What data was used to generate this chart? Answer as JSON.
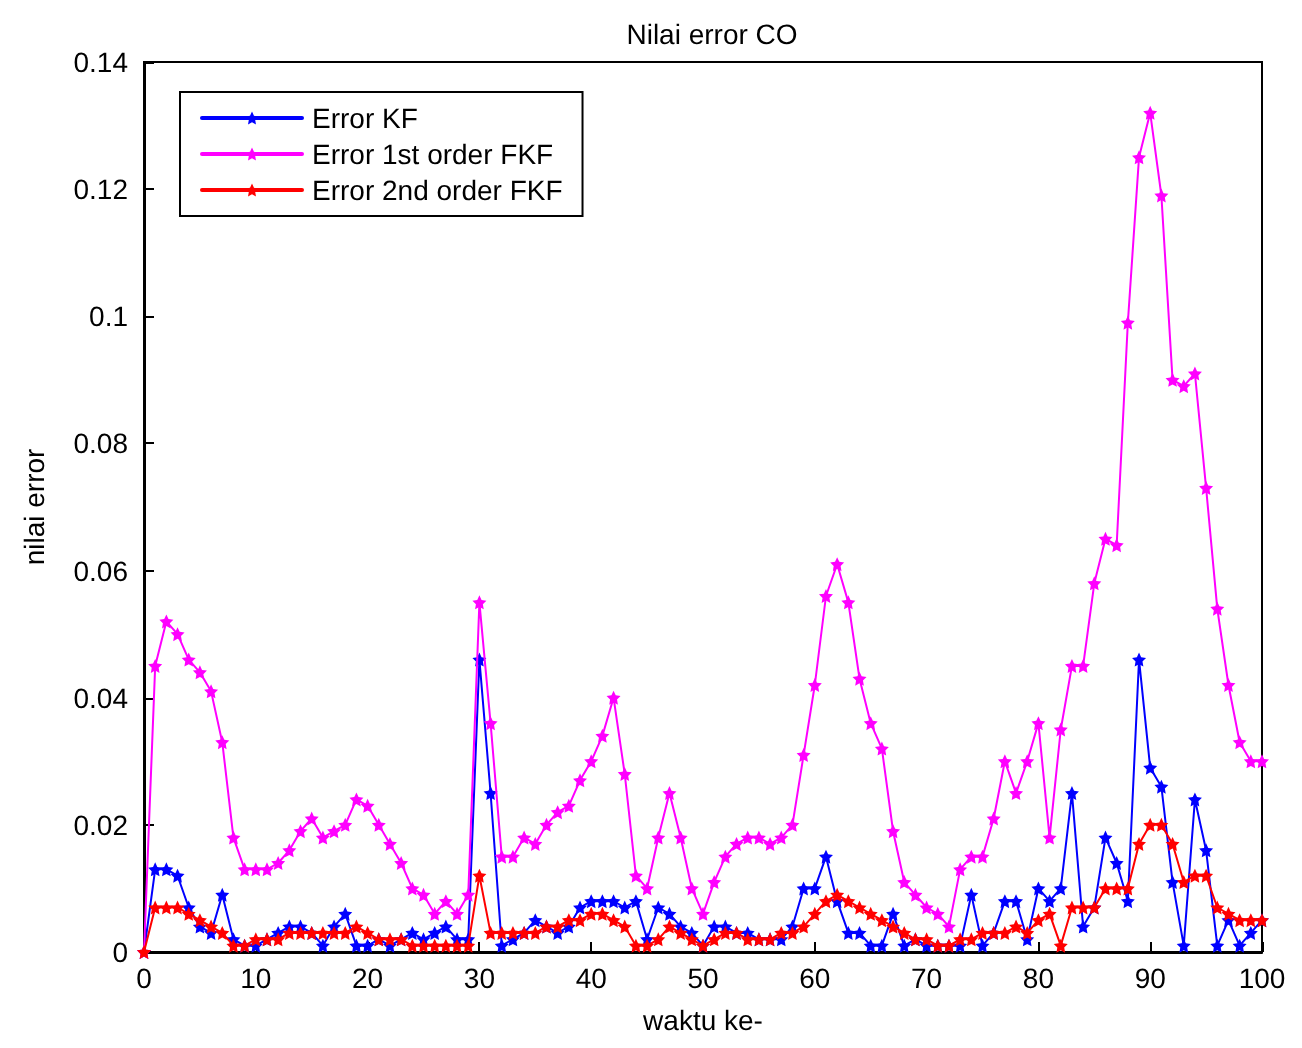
{
  "chart_data": {
    "type": "line",
    "title": "Nilai error CO",
    "xlabel": "waktu ke-",
    "ylabel": "nilai error",
    "x": [
      0,
      1,
      2,
      3,
      4,
      5,
      6,
      7,
      8,
      9,
      10,
      11,
      12,
      13,
      14,
      15,
      16,
      17,
      18,
      19,
      20,
      21,
      22,
      23,
      24,
      25,
      26,
      27,
      28,
      29,
      30,
      31,
      32,
      33,
      34,
      35,
      36,
      37,
      38,
      39,
      40,
      41,
      42,
      43,
      44,
      45,
      46,
      47,
      48,
      49,
      50,
      51,
      52,
      53,
      54,
      55,
      56,
      57,
      58,
      59,
      60,
      61,
      62,
      63,
      64,
      65,
      66,
      67,
      68,
      69,
      70,
      71,
      72,
      73,
      74,
      75,
      76,
      77,
      78,
      79,
      80,
      81,
      82,
      83,
      84,
      85,
      86,
      87,
      88,
      89,
      90,
      91,
      92,
      93,
      94,
      95,
      96,
      97,
      98,
      99,
      100
    ],
    "series": [
      {
        "name": "Error KF",
        "color": "#0000ff",
        "values": [
          0,
          0.013,
          0.013,
          0.012,
          0.007,
          0.004,
          0.003,
          0.009,
          0.002,
          0.001,
          0.001,
          0.002,
          0.003,
          0.004,
          0.004,
          0.003,
          0.001,
          0.004,
          0.006,
          0.001,
          0.001,
          0.002,
          0.001,
          0.002,
          0.003,
          0.002,
          0.003,
          0.004,
          0.002,
          0.002,
          0.046,
          0.025,
          0.001,
          0.002,
          0.003,
          0.005,
          0.004,
          0.003,
          0.004,
          0.007,
          0.008,
          0.008,
          0.008,
          0.007,
          0.008,
          0.002,
          0.007,
          0.006,
          0.004,
          0.003,
          0.001,
          0.004,
          0.004,
          0.003,
          0.003,
          0.002,
          0.002,
          0.002,
          0.004,
          0.01,
          0.01,
          0.015,
          0.008,
          0.003,
          0.003,
          0.001,
          0.001,
          0.006,
          0.001,
          0.002,
          0.001,
          0.001,
          0.001,
          0.001,
          0.009,
          0.001,
          0.003,
          0.008,
          0.008,
          0.002,
          0.01,
          0.008,
          0.01,
          0.025,
          0.004,
          0.007,
          0.018,
          0.014,
          0.008,
          0.046,
          0.029,
          0.026,
          0.011,
          0.001,
          0.024,
          0.016,
          0.001,
          0.005,
          0.001,
          0.003,
          0.005
        ]
      },
      {
        "name": "Error 1st order FKF",
        "color": "#ff00ff",
        "values": [
          0,
          0.045,
          0.052,
          0.05,
          0.046,
          0.044,
          0.041,
          0.033,
          0.018,
          0.013,
          0.013,
          0.013,
          0.014,
          0.016,
          0.019,
          0.021,
          0.018,
          0.019,
          0.02,
          0.024,
          0.023,
          0.02,
          0.017,
          0.014,
          0.01,
          0.009,
          0.006,
          0.008,
          0.006,
          0.009,
          0.055,
          0.036,
          0.015,
          0.015,
          0.018,
          0.017,
          0.02,
          0.022,
          0.023,
          0.027,
          0.03,
          0.034,
          0.04,
          0.028,
          0.012,
          0.01,
          0.018,
          0.025,
          0.018,
          0.01,
          0.006,
          0.011,
          0.015,
          0.017,
          0.018,
          0.018,
          0.017,
          0.018,
          0.02,
          0.031,
          0.042,
          0.056,
          0.061,
          0.055,
          0.043,
          0.036,
          0.032,
          0.019,
          0.011,
          0.009,
          0.007,
          0.006,
          0.004,
          0.013,
          0.015,
          0.015,
          0.021,
          0.03,
          0.025,
          0.03,
          0.036,
          0.018,
          0.035,
          0.045,
          0.045,
          0.058,
          0.065,
          0.064,
          0.099,
          0.125,
          0.132,
          0.119,
          0.09,
          0.089,
          0.091,
          0.073,
          0.054,
          0.042,
          0.033,
          0.03,
          0.03
        ]
      },
      {
        "name": "Error 2nd order FKF",
        "color": "#ff0000",
        "values": [
          0,
          0.007,
          0.007,
          0.007,
          0.006,
          0.005,
          0.004,
          0.003,
          0.001,
          0.001,
          0.002,
          0.002,
          0.002,
          0.003,
          0.003,
          0.003,
          0.003,
          0.003,
          0.003,
          0.004,
          0.003,
          0.002,
          0.002,
          0.002,
          0.001,
          0.001,
          0.001,
          0.001,
          0.001,
          0.001,
          0.012,
          0.003,
          0.003,
          0.003,
          0.003,
          0.003,
          0.004,
          0.004,
          0.005,
          0.005,
          0.006,
          0.006,
          0.005,
          0.004,
          0.001,
          0.001,
          0.002,
          0.004,
          0.003,
          0.002,
          0.001,
          0.002,
          0.003,
          0.003,
          0.002,
          0.002,
          0.002,
          0.003,
          0.003,
          0.004,
          0.006,
          0.008,
          0.009,
          0.008,
          0.007,
          0.006,
          0.005,
          0.004,
          0.003,
          0.002,
          0.002,
          0.001,
          0.001,
          0.002,
          0.002,
          0.003,
          0.003,
          0.003,
          0.004,
          0.003,
          0.005,
          0.006,
          0.001,
          0.007,
          0.007,
          0.007,
          0.01,
          0.01,
          0.01,
          0.017,
          0.02,
          0.02,
          0.017,
          0.011,
          0.012,
          0.012,
          0.007,
          0.006,
          0.005,
          0.005,
          0.005
        ]
      }
    ],
    "xlim": [
      0,
      100
    ],
    "xticks": [
      0,
      10,
      20,
      30,
      40,
      50,
      60,
      70,
      80,
      90,
      100
    ],
    "ylim": [
      0,
      0.14
    ],
    "yticks": [
      0,
      0.02,
      0.04,
      0.06,
      0.08,
      0.1,
      0.12,
      0.14
    ],
    "grid": false,
    "legend": "top left",
    "marker": "star",
    "line_style": "solid"
  }
}
